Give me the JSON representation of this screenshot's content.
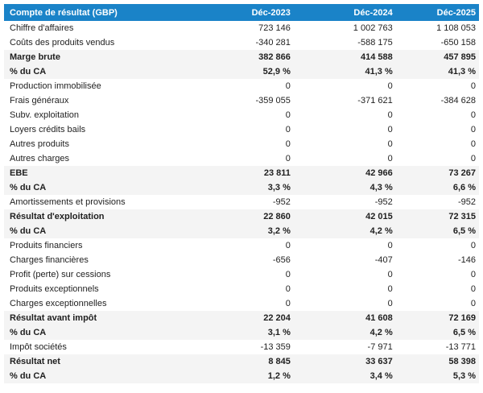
{
  "colors": {
    "header_bg": "#1a83c8",
    "header_text": "#ffffff",
    "stripe_bg": "#f4f4f4",
    "text": "#1f1f1f"
  },
  "table": {
    "title": "Compte de résultat (GBP)",
    "columns": [
      "Déc-2023",
      "Déc-2024",
      "Déc-2025"
    ],
    "rows": [
      {
        "label": "Chiffre d'affaires",
        "values": [
          "723 146",
          "1 002 763",
          "1 108 053"
        ],
        "bold": false
      },
      {
        "label": "Coûts des produits vendus",
        "values": [
          "-340 281",
          "-588 175",
          "-650 158"
        ],
        "bold": false
      },
      {
        "label": "Marge brute",
        "values": [
          "382 866",
          "414 588",
          "457 895"
        ],
        "bold": true
      },
      {
        "label": "% du CA",
        "values": [
          "52,9 %",
          "41,3 %",
          "41,3 %"
        ],
        "bold": true
      },
      {
        "label": "Production immobilisée",
        "values": [
          "0",
          "0",
          "0"
        ],
        "bold": false
      },
      {
        "label": "Frais généraux",
        "values": [
          "-359 055",
          "-371 621",
          "-384 628"
        ],
        "bold": false
      },
      {
        "label": "Subv. exploitation",
        "values": [
          "0",
          "0",
          "0"
        ],
        "bold": false
      },
      {
        "label": "Loyers crédits bails",
        "values": [
          "0",
          "0",
          "0"
        ],
        "bold": false
      },
      {
        "label": "Autres produits",
        "values": [
          "0",
          "0",
          "0"
        ],
        "bold": false
      },
      {
        "label": "Autres charges",
        "values": [
          "0",
          "0",
          "0"
        ],
        "bold": false
      },
      {
        "label": "EBE",
        "values": [
          "23 811",
          "42 966",
          "73 267"
        ],
        "bold": true
      },
      {
        "label": "% du CA",
        "values": [
          "3,3 %",
          "4,3 %",
          "6,6 %"
        ],
        "bold": true
      },
      {
        "label": "Amortissements et provisions",
        "values": [
          "-952",
          "-952",
          "-952"
        ],
        "bold": false
      },
      {
        "label": "Résultat d'exploitation",
        "values": [
          "22 860",
          "42 015",
          "72 315"
        ],
        "bold": true
      },
      {
        "label": "% du CA",
        "values": [
          "3,2 %",
          "4,2 %",
          "6,5 %"
        ],
        "bold": true
      },
      {
        "label": "Produits financiers",
        "values": [
          "0",
          "0",
          "0"
        ],
        "bold": false
      },
      {
        "label": "Charges financières",
        "values": [
          "-656",
          "-407",
          "-146"
        ],
        "bold": false
      },
      {
        "label": "Profit (perte) sur cessions",
        "values": [
          "0",
          "0",
          "0"
        ],
        "bold": false
      },
      {
        "label": "Produits exceptionnels",
        "values": [
          "0",
          "0",
          "0"
        ],
        "bold": false
      },
      {
        "label": "Charges exceptionnelles",
        "values": [
          "0",
          "0",
          "0"
        ],
        "bold": false
      },
      {
        "label": "Résultat avant impôt",
        "values": [
          "22 204",
          "41 608",
          "72 169"
        ],
        "bold": true
      },
      {
        "label": "% du CA",
        "values": [
          "3,1 %",
          "4,2 %",
          "6,5 %"
        ],
        "bold": true
      },
      {
        "label": "Impôt sociétés",
        "values": [
          "-13 359",
          "-7 971",
          "-13 771"
        ],
        "bold": false
      },
      {
        "label": "Résultat net",
        "values": [
          "8 845",
          "33 637",
          "58 398"
        ],
        "bold": true
      },
      {
        "label": "% du CA",
        "values": [
          "1,2 %",
          "3,4 %",
          "5,3 %"
        ],
        "bold": true
      }
    ]
  }
}
